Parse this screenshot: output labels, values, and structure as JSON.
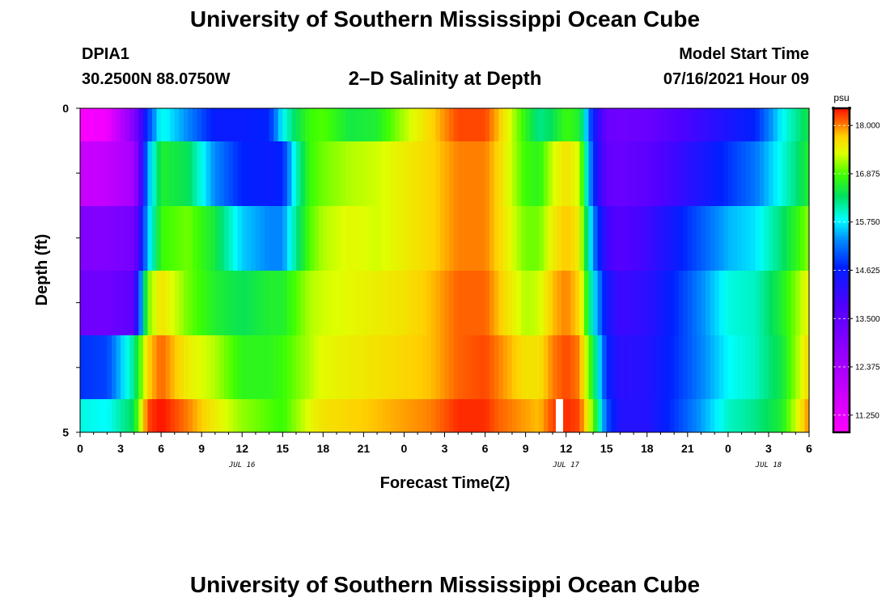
{
  "header": {
    "title": "University of Southern Mississippi Ocean Cube",
    "station": "DPIA1",
    "coords": "30.2500N  88.0750W",
    "subtitle": "2–D Salinity at Depth",
    "start_label": "Model Start Time",
    "start_value": "07/16/2021 Hour 09"
  },
  "footer": {
    "title": "University of Southern Mississippi Ocean Cube"
  },
  "chart_data": {
    "type": "heatmap",
    "title": "2–D Salinity at Depth",
    "xlabel": "Forecast Time(Z)",
    "ylabel": "Depth (ft)",
    "x_tick_labels": [
      "0",
      "3",
      "6",
      "9",
      "12",
      "15",
      "18",
      "21",
      "0",
      "3",
      "6",
      "9",
      "12",
      "15",
      "18",
      "21",
      "0",
      "3",
      "6"
    ],
    "x_date_labels": [
      {
        "hour_index": 12,
        "label": "JUL 16"
      },
      {
        "hour_index": 36,
        "label": "JUL 17"
      },
      {
        "hour_index": 51,
        "label": "JUL 18"
      }
    ],
    "y_tick_labels": [
      "0",
      "5"
    ],
    "ylim": [
      0,
      5
    ],
    "hours": 54,
    "colorbar": {
      "unit": "psu",
      "min": 10.85,
      "max": 18.4,
      "labels": [
        "11.250",
        "12.375",
        "13.500",
        "14.625",
        "15.750",
        "16.875",
        "18.000"
      ],
      "stops": [
        {
          "v": 10.85,
          "c": "#ff00ff"
        },
        {
          "v": 12.6,
          "c": "#9a00ff"
        },
        {
          "v": 13.8,
          "c": "#5000ff"
        },
        {
          "v": 14.7,
          "c": "#0020ff"
        },
        {
          "v": 15.35,
          "c": "#0090ff"
        },
        {
          "v": 15.8,
          "c": "#00ffff"
        },
        {
          "v": 16.35,
          "c": "#00e060"
        },
        {
          "v": 16.85,
          "c": "#40ff00"
        },
        {
          "v": 17.35,
          "c": "#e0ff00"
        },
        {
          "v": 17.75,
          "c": "#ffd000"
        },
        {
          "v": 18.05,
          "c": "#ff7000"
        },
        {
          "v": 18.4,
          "c": "#ff1000"
        }
      ]
    },
    "anchor_hours": [
      0,
      2,
      4,
      5,
      6,
      8,
      10,
      12,
      14,
      15,
      16,
      17,
      18,
      20,
      22,
      24,
      26,
      28,
      30,
      31,
      33,
      34,
      35,
      36,
      37,
      38,
      39,
      40,
      42,
      45,
      48,
      50,
      52,
      54
    ],
    "depth_rows": [
      {
        "depth_ft": 0.0,
        "anchors": [
          10.9,
          11.1,
          13.0,
          14.8,
          15.9,
          15.3,
          14.6,
          14.6,
          14.7,
          15.8,
          16.4,
          16.8,
          16.9,
          16.5,
          16.6,
          17.2,
          17.7,
          18.2,
          18.2,
          17.8,
          16.7,
          16.2,
          16.4,
          16.8,
          16.6,
          14.6,
          13.4,
          13.3,
          13.4,
          13.9,
          14.4,
          14.7,
          15.8,
          16.5
        ]
      },
      {
        "depth_ft": 0.5,
        "anchors": [
          11.8,
          11.9,
          12.4,
          15.4,
          16.6,
          16.4,
          15.3,
          14.7,
          14.6,
          14.7,
          16.0,
          16.8,
          17.0,
          17.2,
          17.3,
          17.5,
          17.7,
          18.0,
          18.0,
          17.7,
          16.8,
          16.7,
          17.3,
          17.6,
          17.3,
          14.8,
          13.5,
          13.4,
          13.6,
          14.2,
          14.8,
          15.2,
          15.9,
          16.6
        ]
      },
      {
        "depth_ft": 1.5,
        "anchors": [
          13.0,
          13.0,
          13.2,
          15.5,
          16.8,
          17.0,
          16.5,
          15.6,
          15.3,
          15.3,
          16.2,
          16.9,
          17.2,
          17.4,
          17.3,
          17.5,
          17.7,
          18.0,
          18.0,
          17.7,
          17.0,
          17.0,
          17.5,
          17.8,
          17.5,
          15.3,
          14.0,
          13.7,
          14.0,
          14.8,
          15.5,
          15.7,
          16.3,
          17.1
        ]
      },
      {
        "depth_ft": 2.5,
        "anchors": [
          13.3,
          13.3,
          13.6,
          17.0,
          17.6,
          17.0,
          16.6,
          16.4,
          16.6,
          16.6,
          16.9,
          17.2,
          17.3,
          17.4,
          17.5,
          17.6,
          17.8,
          18.1,
          18.1,
          17.8,
          17.2,
          17.3,
          17.8,
          18.0,
          17.7,
          15.8,
          14.5,
          14.0,
          14.2,
          15.0,
          15.9,
          16.0,
          16.6,
          17.5
        ]
      },
      {
        "depth_ft": 3.5,
        "anchors": [
          14.8,
          14.9,
          16.2,
          17.7,
          18.1,
          17.5,
          17.2,
          16.7,
          16.7,
          16.8,
          17.0,
          17.2,
          17.4,
          17.5,
          17.6,
          17.7,
          17.8,
          18.1,
          18.2,
          18.0,
          17.6,
          17.6,
          18.0,
          18.2,
          18.0,
          16.5,
          14.7,
          14.2,
          14.3,
          15.0,
          15.8,
          16.0,
          16.5,
          17.7
        ]
      },
      {
        "depth_ft": 4.5,
        "anchors": [
          15.9,
          15.8,
          16.4,
          18.2,
          18.4,
          18.0,
          17.5,
          17.1,
          16.9,
          16.8,
          17.1,
          17.4,
          17.6,
          17.7,
          17.8,
          17.9,
          18.0,
          18.3,
          18.3,
          18.1,
          17.9,
          17.8,
          18.2,
          18.3,
          18.2,
          17.0,
          15.0,
          14.3,
          14.3,
          15.1,
          16.0,
          16.2,
          16.6,
          18.0
        ]
      }
    ],
    "missing_cell": {
      "depth_row": 5,
      "hour_index": 35
    }
  }
}
